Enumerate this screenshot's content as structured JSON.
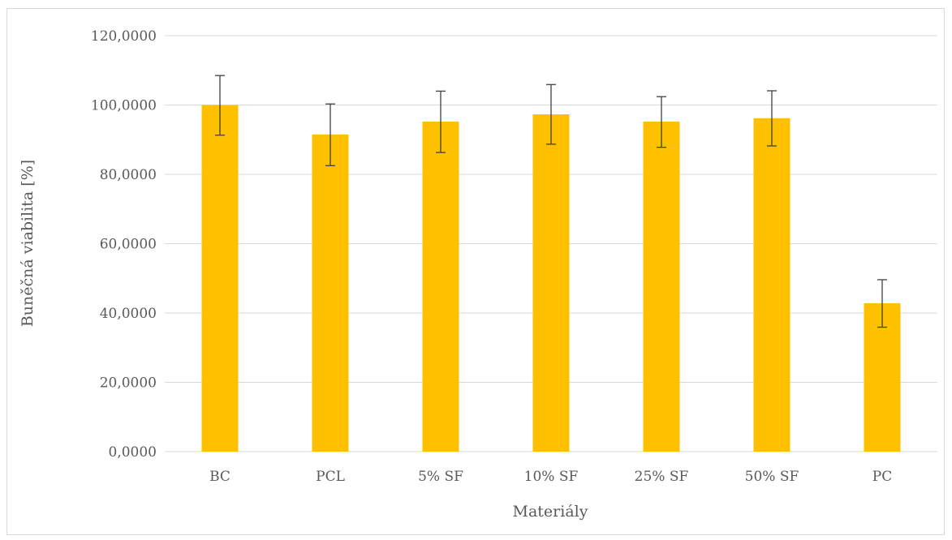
{
  "chart_data": {
    "type": "bar",
    "title": "",
    "xlabel": "Materiály",
    "ylabel": "Buněčná viabilita [%]",
    "categories": [
      "BC",
      "PCL",
      "5% SF",
      "10% SF",
      "25% SF",
      "50% SF",
      "PC"
    ],
    "values": [
      100.0,
      91.5,
      95.2,
      97.3,
      95.2,
      96.2,
      42.8
    ],
    "error_high": [
      108.5,
      100.3,
      104.0,
      105.9,
      102.4,
      104.1,
      49.6
    ],
    "error_low": [
      91.3,
      82.5,
      86.3,
      88.7,
      87.8,
      88.2,
      35.9
    ],
    "ylim": [
      0,
      120
    ],
    "yticks": [
      0,
      20,
      40,
      60,
      80,
      100,
      120
    ],
    "ytick_labels": [
      "0,0000",
      "20,0000",
      "40,0000",
      "60,0000",
      "80,0000",
      "100,0000",
      "120,0000"
    ],
    "grid": true,
    "bar_color": "#FFC000",
    "error_bar_color": "#404040",
    "grid_color": "#d9d9d9"
  }
}
